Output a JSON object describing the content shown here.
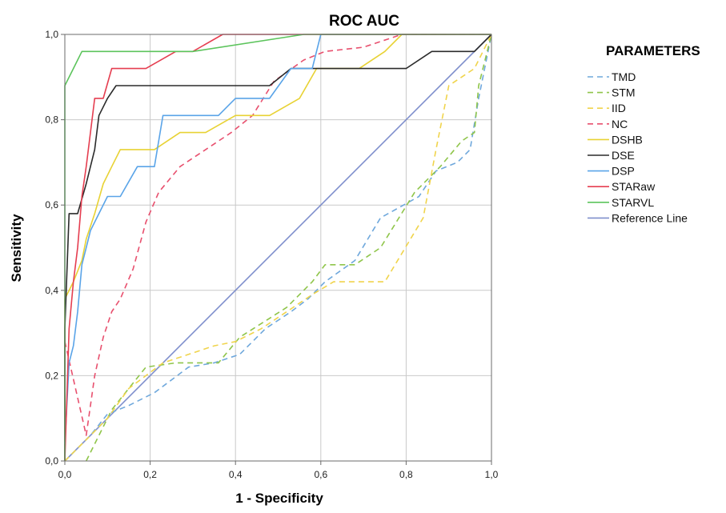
{
  "chart_data": {
    "type": "line",
    "title": "ROC AUC",
    "xlabel": "1 - Specificity",
    "ylabel": "Sensitivity",
    "xlim": [
      0,
      1
    ],
    "ylim": [
      0,
      1
    ],
    "xticks": [
      "0,0",
      "0,2",
      "0,4",
      "0,6",
      "0,8",
      "1,0"
    ],
    "yticks": [
      "0,0",
      "0,2",
      "0,4",
      "0,6",
      "0,8",
      "1,0"
    ],
    "grid": true,
    "legend_title": "PARAMETERS",
    "legend_position": "right",
    "series": [
      {
        "name": "TMD",
        "color": "#6fa8dc",
        "dashed": true,
        "x": [
          0,
          0.06,
          0.1,
          0.15,
          0.21,
          0.29,
          0.35,
          0.41,
          0.47,
          0.53,
          0.57,
          0.61,
          0.68,
          0.74,
          0.83,
          0.87,
          0.92,
          0.95,
          0.97,
          1.0
        ],
        "y": [
          0,
          0.06,
          0.11,
          0.13,
          0.16,
          0.22,
          0.23,
          0.25,
          0.31,
          0.35,
          0.38,
          0.42,
          0.47,
          0.57,
          0.62,
          0.68,
          0.7,
          0.73,
          0.85,
          1.0
        ]
      },
      {
        "name": "STM",
        "color": "#8fc54a",
        "dashed": true,
        "x": [
          0.05,
          0.07,
          0.11,
          0.19,
          0.26,
          0.36,
          0.41,
          0.52,
          0.58,
          0.61,
          0.68,
          0.74,
          0.82,
          0.88,
          0.93,
          0.96,
          0.97,
          1.0
        ],
        "y": [
          0,
          0.04,
          0.12,
          0.22,
          0.23,
          0.23,
          0.29,
          0.36,
          0.42,
          0.46,
          0.46,
          0.5,
          0.63,
          0.69,
          0.75,
          0.77,
          0.88,
          1.0
        ],
        "x_label": "",
        "y_label": ""
      },
      {
        "name": "IID",
        "color": "#f0d44c",
        "dashed": true,
        "x": [
          0,
          0.05,
          0.1,
          0.15,
          0.23,
          0.29,
          0.35,
          0.4,
          0.46,
          0.52,
          0.58,
          0.63,
          0.75,
          0.84,
          0.87,
          0.9,
          0.96,
          1.0
        ],
        "y": [
          0,
          0.05,
          0.1,
          0.17,
          0.23,
          0.25,
          0.27,
          0.28,
          0.31,
          0.35,
          0.39,
          0.42,
          0.42,
          0.57,
          0.73,
          0.88,
          0.92,
          1.0
        ]
      },
      {
        "name": "NC",
        "color": "#e8506e",
        "dashed": true,
        "x": [
          0,
          0.05,
          0.07,
          0.09,
          0.11,
          0.13,
          0.16,
          0.19,
          0.22,
          0.27,
          0.33,
          0.39,
          0.44,
          0.49,
          0.56,
          0.61,
          0.7,
          0.79,
          0.84,
          1.0
        ],
        "y": [
          0.28,
          0.06,
          0.2,
          0.29,
          0.35,
          0.38,
          0.45,
          0.56,
          0.63,
          0.69,
          0.73,
          0.77,
          0.81,
          0.89,
          0.94,
          0.96,
          0.97,
          1.0,
          1.0,
          1.0
        ]
      },
      {
        "name": "DSHB",
        "color": "#e8d234",
        "dashed": false,
        "x": [
          0,
          0,
          0.02,
          0.04,
          0.05,
          0.07,
          0.09,
          0.11,
          0.13,
          0.16,
          0.21,
          0.27,
          0.33,
          0.4,
          0.48,
          0.55,
          0.59,
          0.69,
          0.75,
          0.79,
          0.86,
          0.93,
          1.0
        ],
        "y": [
          0,
          0.38,
          0.42,
          0.47,
          0.52,
          0.58,
          0.65,
          0.69,
          0.73,
          0.73,
          0.73,
          0.77,
          0.77,
          0.81,
          0.81,
          0.85,
          0.92,
          0.92,
          0.96,
          1.0,
          1.0,
          1.0,
          1.0
        ]
      },
      {
        "name": "DSE",
        "color": "#2b2b2b",
        "dashed": false,
        "x": [
          0,
          0,
          0.01,
          0.03,
          0.05,
          0.06,
          0.07,
          0.08,
          0.1,
          0.12,
          0.22,
          0.32,
          0.42,
          0.48,
          0.53,
          0.58,
          0.61,
          0.7,
          0.8,
          0.86,
          0.96,
          1.0
        ],
        "y": [
          0,
          0.31,
          0.58,
          0.58,
          0.65,
          0.69,
          0.73,
          0.81,
          0.85,
          0.88,
          0.88,
          0.88,
          0.88,
          0.88,
          0.92,
          0.92,
          0.92,
          0.92,
          0.92,
          0.96,
          0.96,
          1.0
        ]
      },
      {
        "name": "DSP",
        "color": "#5aa4e8",
        "dashed": false,
        "x": [
          0,
          0.01,
          0.02,
          0.03,
          0.04,
          0.05,
          0.06,
          0.08,
          0.1,
          0.13,
          0.17,
          0.21,
          0.23,
          0.3,
          0.36,
          0.4,
          0.48,
          0.53,
          0.58,
          0.6,
          0.7,
          0.85,
          1.0
        ],
        "y": [
          0.04,
          0.23,
          0.27,
          0.35,
          0.46,
          0.5,
          0.54,
          0.58,
          0.62,
          0.62,
          0.69,
          0.69,
          0.81,
          0.81,
          0.81,
          0.85,
          0.85,
          0.92,
          0.92,
          1.0,
          1.0,
          1.0,
          1.0
        ]
      },
      {
        "name": "STARaw",
        "color": "#e53e50",
        "dashed": false,
        "x": [
          0,
          0.01,
          0.02,
          0.03,
          0.04,
          0.05,
          0.06,
          0.07,
          0.09,
          0.11,
          0.14,
          0.19,
          0.26,
          0.3,
          0.37,
          0.45,
          0.6,
          1.0
        ],
        "y": [
          0,
          0.31,
          0.42,
          0.5,
          0.62,
          0.69,
          0.77,
          0.85,
          0.85,
          0.92,
          0.92,
          0.92,
          0.96,
          0.96,
          1.0,
          1.0,
          1.0,
          1.0
        ]
      },
      {
        "name": "STARVL",
        "color": "#5cc45c",
        "dashed": false,
        "x": [
          0,
          0,
          0.02,
          0.04,
          0.06,
          0.1,
          0.3,
          0.56,
          0.6,
          1.0
        ],
        "y": [
          0,
          0.88,
          0.92,
          0.96,
          0.96,
          0.96,
          0.96,
          1.0,
          1.0,
          1.0
        ]
      },
      {
        "name": "Reference Line",
        "color": "#7f8fcc",
        "dashed": false,
        "x": [
          0,
          1
        ],
        "y": [
          0,
          1
        ]
      }
    ]
  }
}
